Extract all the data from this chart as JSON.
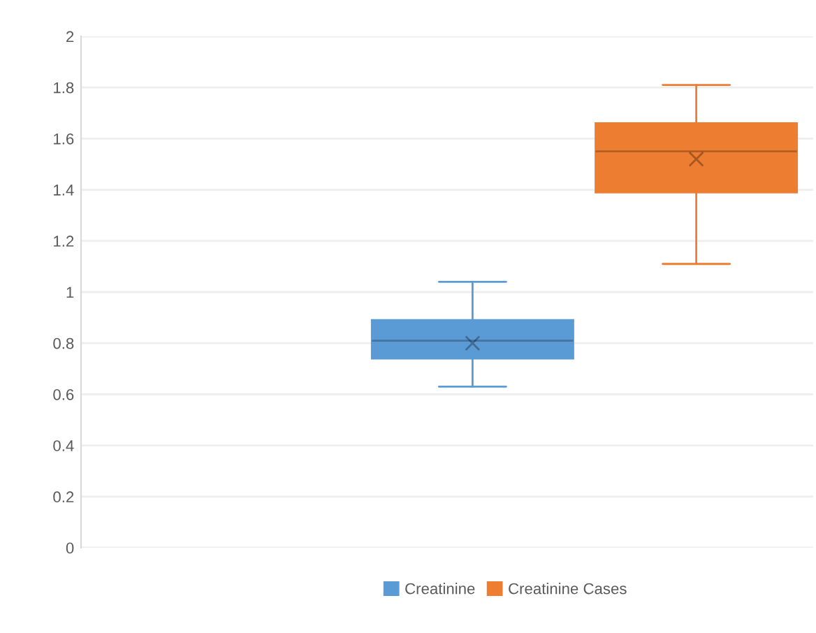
{
  "chart_data": {
    "type": "box",
    "categories": [
      null
    ],
    "series": [
      {
        "name": "Creatinine",
        "color": "#5b9bd5",
        "boxes": [
          {
            "low": 0.63,
            "q1": 0.74,
            "median": 0.81,
            "q3": 0.89,
            "high": 1.04,
            "mean": 0.8
          }
        ]
      },
      {
        "name": "Creatinine Cases",
        "color": "#ed7d31",
        "boxes": [
          {
            "low": 1.11,
            "q1": 1.39,
            "median": 1.55,
            "q3": 1.66,
            "high": 1.81,
            "mean": 1.52
          }
        ]
      }
    ],
    "ylim": [
      0,
      2
    ],
    "yticks": [
      0,
      0.2,
      0.4,
      0.6,
      0.8,
      1,
      1.2,
      1.4,
      1.6,
      1.8,
      2
    ],
    "grid": "y",
    "legend": "bottom"
  }
}
